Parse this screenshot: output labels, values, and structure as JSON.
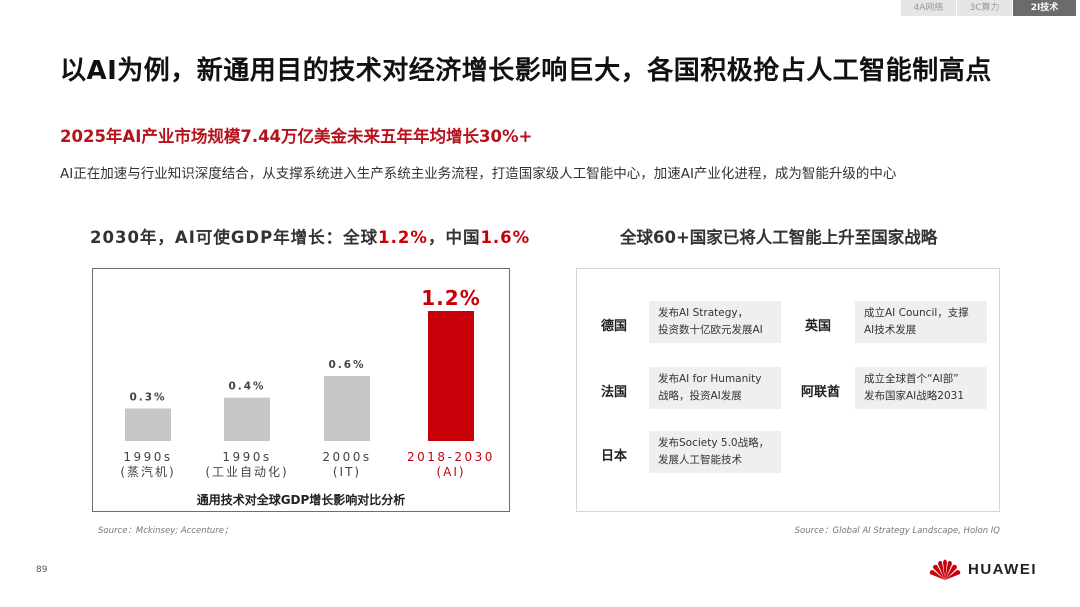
{
  "tabs": [
    "4A网络",
    "3C算力",
    "2I技术"
  ],
  "title": "以AI为例，新通用目的技术对经济增长影响巨大，各国积极抢占人工智能制高点",
  "subtitle": "2025年AI产业市场规模7.44万亿美金未来五年年均增长30%+",
  "description": "AI正在加速与行业知识深度结合，从支撑系统进入生产系统主业务流程，打造国家级人工智能中心，加速AI产业化进程，成为智能升级的中心",
  "left_section": {
    "heading_prefix": "2030年，AI可使GDP年增长：全球",
    "global_value": "1.2%",
    "separator": "，中国",
    "china_value": "1.6%"
  },
  "chart_caption": "通用技术对全球GDP增长影响对比分析",
  "chart_data": {
    "type": "bar",
    "categories": [
      "1990s",
      "1990s",
      "2000s",
      "2018-2030"
    ],
    "category_sublabels": [
      "(蒸汽机)",
      "(工业自动化)",
      "(IT)",
      "(AI)"
    ],
    "values": [
      0.3,
      0.4,
      0.6,
      1.2
    ],
    "value_labels": [
      "0.3%",
      "0.4%",
      "0.6%",
      "1.2%"
    ],
    "colors": [
      "#c6c6c6",
      "#c6c6c6",
      "#c6c6c6",
      "#c8000a"
    ],
    "highlight_index": 3,
    "highlight_color": "#c8000a",
    "bar_color": "#c6c6c6",
    "ylim": [
      0,
      1.2
    ],
    "grid": false,
    "title": "通用技术对全球GDP增长影响对比分析"
  },
  "right_section": {
    "heading": "全球60+国家已将人工智能上升至国家战略"
  },
  "strategies": [
    {
      "country": "德国",
      "lines": [
        "发布AI Strategy，",
        "投资数十亿欧元发展AI"
      ]
    },
    {
      "country": "英国",
      "lines": [
        "成立AI Council，支撑",
        "AI技术发展"
      ]
    },
    {
      "country": "法国",
      "lines": [
        "发布AI for Humanity",
        "战略，投资AI发展"
      ]
    },
    {
      "country": "阿联酋",
      "lines": [
        "成立全球首个“AI部”",
        "发布国家AI战略2031"
      ]
    },
    {
      "country": "日本",
      "lines": [
        "发布Society 5.0战略，",
        "发展人工智能技术"
      ]
    }
  ],
  "source_left": "Source：Mckinsey; Accenture；",
  "source_right": "Source：Global AI Strategy Landscape, Holon IQ",
  "page_number": "89",
  "brand": "HUAWEI",
  "icons": {
    "logo": "huawei-petal-logo"
  }
}
